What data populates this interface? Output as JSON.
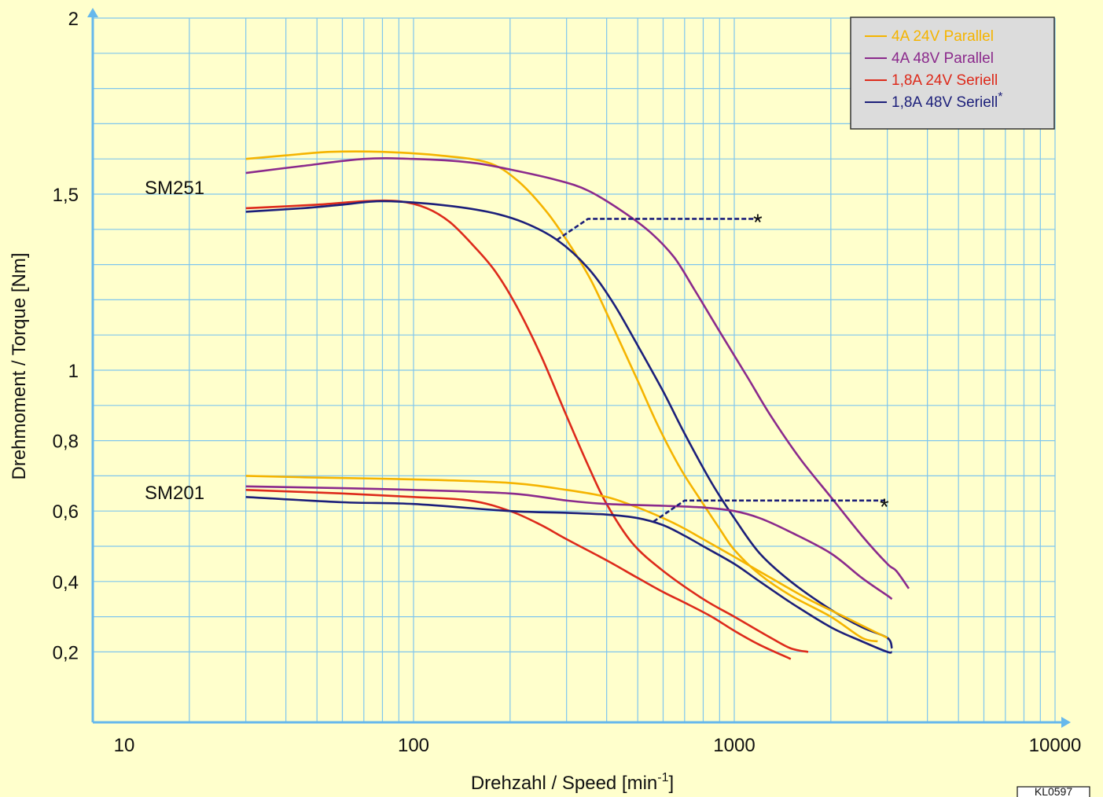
{
  "chart_data": {
    "type": "line",
    "xlabel": "Drehzahl / Speed [min",
    "xlabel_sup": "-1",
    "xlabel_end": "]",
    "ylabel": "Drehmoment / Torque [Nm]",
    "x_scale": "log",
    "xlim": [
      10,
      10000
    ],
    "ylim": [
      0,
      2
    ],
    "grid": true,
    "x_tick_labels": [
      {
        "v": 10,
        "t": "10"
      },
      {
        "v": 100,
        "t": "100"
      },
      {
        "v": 1000,
        "t": "1000"
      },
      {
        "v": 10000,
        "t": "10000"
      }
    ],
    "y_tick_labels": [
      {
        "v": 0.2,
        "t": "0,2"
      },
      {
        "v": 0.4,
        "t": "0,4"
      },
      {
        "v": 0.6,
        "t": "0,6"
      },
      {
        "v": 0.8,
        "t": "0,8"
      },
      {
        "v": 1,
        "t": "1"
      },
      {
        "v": 1.5,
        "t": "1,5"
      },
      {
        "v": 2,
        "t": "2"
      }
    ],
    "legend_position": "top-right",
    "legend": [
      {
        "label": "4A 24V Parallel",
        "color": "#f5b400"
      },
      {
        "label": "4A 48V Parallel",
        "color": "#8b2a8c"
      },
      {
        "label": "1,8A 24V Seriell",
        "color": "#dd2a1b"
      },
      {
        "label": "1,8A 48V Seriell",
        "color": "#1c1f7a",
        "marker": "*"
      }
    ],
    "annotations": {
      "sm251": "SM251",
      "sm201": "SM201",
      "star": "*",
      "stamp": "KL0597"
    },
    "series": [
      {
        "group": "SM251",
        "name": "4A 24V Parallel",
        "color": "#f5b400",
        "points": [
          [
            30,
            1.6
          ],
          [
            40,
            1.61
          ],
          [
            55,
            1.62
          ],
          [
            80,
            1.62
          ],
          [
            120,
            1.61
          ],
          [
            170,
            1.59
          ],
          [
            210,
            1.54
          ],
          [
            260,
            1.45
          ],
          [
            310,
            1.35
          ],
          [
            360,
            1.25
          ],
          [
            420,
            1.12
          ],
          [
            500,
            0.97
          ],
          [
            580,
            0.84
          ],
          [
            680,
            0.72
          ],
          [
            800,
            0.62
          ],
          [
            900,
            0.55
          ],
          [
            1000,
            0.49
          ],
          [
            1200,
            0.42
          ],
          [
            1500,
            0.36
          ],
          [
            2000,
            0.3
          ],
          [
            2500,
            0.24
          ],
          [
            2800,
            0.23
          ]
        ]
      },
      {
        "group": "SM251",
        "name": "4A 48V Parallel",
        "color": "#8b2a8c",
        "points": [
          [
            30,
            1.56
          ],
          [
            45,
            1.58
          ],
          [
            70,
            1.6
          ],
          [
            100,
            1.6
          ],
          [
            150,
            1.59
          ],
          [
            200,
            1.57
          ],
          [
            280,
            1.54
          ],
          [
            350,
            1.51
          ],
          [
            450,
            1.45
          ],
          [
            550,
            1.39
          ],
          [
            650,
            1.32
          ],
          [
            750,
            1.23
          ],
          [
            900,
            1.11
          ],
          [
            1100,
            0.98
          ],
          [
            1300,
            0.87
          ],
          [
            1600,
            0.75
          ],
          [
            2000,
            0.64
          ],
          [
            2500,
            0.53
          ],
          [
            3000,
            0.45
          ],
          [
            3200,
            0.43
          ],
          [
            3500,
            0.38
          ]
        ]
      },
      {
        "group": "SM251",
        "name": "1,8A 24V Seriell",
        "color": "#dd2a1b",
        "points": [
          [
            30,
            1.46
          ],
          [
            50,
            1.47
          ],
          [
            70,
            1.48
          ],
          [
            90,
            1.48
          ],
          [
            110,
            1.46
          ],
          [
            130,
            1.42
          ],
          [
            155,
            1.35
          ],
          [
            180,
            1.28
          ],
          [
            210,
            1.18
          ],
          [
            250,
            1.04
          ],
          [
            300,
            0.87
          ],
          [
            350,
            0.73
          ],
          [
            400,
            0.62
          ],
          [
            480,
            0.51
          ],
          [
            600,
            0.43
          ],
          [
            800,
            0.35
          ],
          [
            1000,
            0.3
          ],
          [
            1300,
            0.24
          ],
          [
            1500,
            0.21
          ],
          [
            1700,
            0.2
          ]
        ]
      },
      {
        "group": "SM251",
        "name": "1,8A 48V Seriell",
        "color": "#1c1f7a",
        "points": [
          [
            30,
            1.45
          ],
          [
            45,
            1.46
          ],
          [
            60,
            1.47
          ],
          [
            80,
            1.48
          ],
          [
            120,
            1.47
          ],
          [
            170,
            1.45
          ],
          [
            220,
            1.42
          ],
          [
            280,
            1.37
          ],
          [
            350,
            1.29
          ],
          [
            420,
            1.19
          ],
          [
            500,
            1.07
          ],
          [
            600,
            0.94
          ],
          [
            700,
            0.82
          ],
          [
            850,
            0.68
          ],
          [
            1000,
            0.58
          ],
          [
            1200,
            0.48
          ],
          [
            1500,
            0.4
          ],
          [
            2000,
            0.32
          ],
          [
            2500,
            0.27
          ],
          [
            3000,
            0.24
          ],
          [
            3100,
            0.21
          ]
        ]
      },
      {
        "group": "SM201",
        "name": "4A 24V Parallel",
        "color": "#f5b400",
        "points": [
          [
            30,
            0.7
          ],
          [
            50,
            0.695
          ],
          [
            100,
            0.69
          ],
          [
            200,
            0.68
          ],
          [
            300,
            0.66
          ],
          [
            400,
            0.64
          ],
          [
            500,
            0.61
          ],
          [
            600,
            0.58
          ],
          [
            700,
            0.55
          ],
          [
            800,
            0.52
          ],
          [
            1000,
            0.47
          ],
          [
            1300,
            0.41
          ],
          [
            1700,
            0.35
          ],
          [
            2200,
            0.3
          ],
          [
            2700,
            0.26
          ],
          [
            3000,
            0.24
          ]
        ]
      },
      {
        "group": "SM201",
        "name": "4A 48V Parallel",
        "color": "#8b2a8c",
        "points": [
          [
            30,
            0.67
          ],
          [
            60,
            0.665
          ],
          [
            100,
            0.66
          ],
          [
            200,
            0.65
          ],
          [
            300,
            0.63
          ],
          [
            400,
            0.62
          ],
          [
            600,
            0.615
          ],
          [
            800,
            0.61
          ],
          [
            1000,
            0.6
          ],
          [
            1200,
            0.58
          ],
          [
            1500,
            0.54
          ],
          [
            2000,
            0.48
          ],
          [
            2500,
            0.41
          ],
          [
            3000,
            0.36
          ],
          [
            3100,
            0.35
          ]
        ]
      },
      {
        "group": "SM201",
        "name": "1,8A 24V Seriell",
        "color": "#dd2a1b",
        "points": [
          [
            30,
            0.66
          ],
          [
            60,
            0.65
          ],
          [
            100,
            0.64
          ],
          [
            150,
            0.63
          ],
          [
            200,
            0.6
          ],
          [
            250,
            0.56
          ],
          [
            300,
            0.52
          ],
          [
            400,
            0.46
          ],
          [
            500,
            0.41
          ],
          [
            600,
            0.37
          ],
          [
            700,
            0.34
          ],
          [
            850,
            0.3
          ],
          [
            1000,
            0.26
          ],
          [
            1200,
            0.22
          ],
          [
            1500,
            0.18
          ]
        ]
      },
      {
        "group": "SM201",
        "name": "1,8A 48V Seriell",
        "color": "#1c1f7a",
        "points": [
          [
            30,
            0.64
          ],
          [
            60,
            0.625
          ],
          [
            100,
            0.62
          ],
          [
            200,
            0.6
          ],
          [
            300,
            0.595
          ],
          [
            400,
            0.59
          ],
          [
            500,
            0.58
          ],
          [
            600,
            0.56
          ],
          [
            700,
            0.53
          ],
          [
            800,
            0.5
          ],
          [
            1000,
            0.45
          ],
          [
            1200,
            0.4
          ],
          [
            1500,
            0.34
          ],
          [
            2000,
            0.27
          ],
          [
            2500,
            0.23
          ],
          [
            3000,
            0.2
          ],
          [
            3100,
            0.2
          ]
        ]
      }
    ],
    "extension_lines": [
      {
        "group": "SM251",
        "color": "#1c1f7a",
        "points": [
          [
            280,
            1.37
          ],
          [
            350,
            1.43
          ],
          [
            1200,
            1.43
          ]
        ]
      },
      {
        "group": "SM201",
        "color": "#1c1f7a",
        "points": [
          [
            560,
            0.57
          ],
          [
            700,
            0.63
          ],
          [
            3000,
            0.63
          ]
        ]
      }
    ]
  }
}
